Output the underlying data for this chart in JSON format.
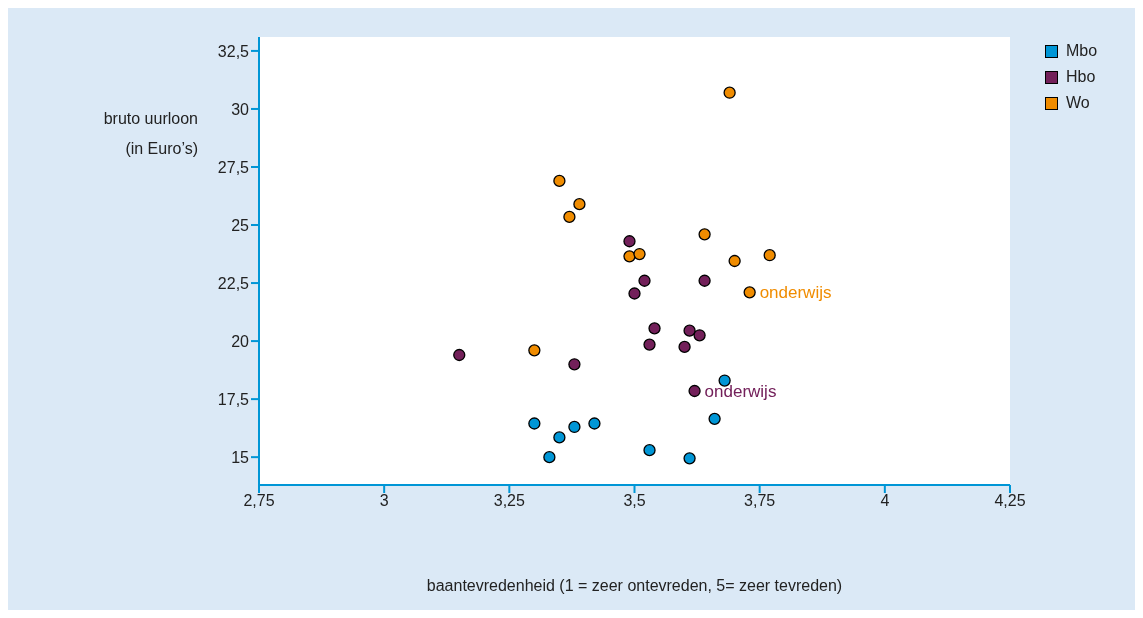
{
  "chart_data": {
    "type": "scatter",
    "xlabel": "baantevredenheid (1 = zeer ontevreden, 5= zeer tevreden)",
    "ylabel": "bruto uurloon\n(in Euro’s)",
    "xlim": [
      2.75,
      4.25
    ],
    "ylim": [
      13.8,
      33.1
    ],
    "xticks": [
      {
        "value": 2.75,
        "label": "2,75"
      },
      3,
      {
        "value": 3.25,
        "label": "3,25"
      },
      {
        "value": 3.5,
        "label": "3,5"
      },
      {
        "value": 3.75,
        "label": "3,75"
      },
      4,
      {
        "value": 4.25,
        "label": "4,25"
      }
    ],
    "yticks": [
      15,
      {
        "value": 17.5,
        "label": "17,5"
      },
      20,
      {
        "value": 22.5,
        "label": "22,5"
      },
      25,
      {
        "value": 27.5,
        "label": "27,5"
      },
      30,
      {
        "value": 32.5,
        "label": "32,5"
      }
    ],
    "grid": false,
    "legend": "top right",
    "marker": "circle",
    "series": [
      {
        "name": "Mbo",
        "color": "#0096d6",
        "x": [
          3.3,
          3.35,
          3.33,
          3.38,
          3.42,
          3.53,
          3.61,
          3.66,
          3.68
        ],
        "values": [
          16.45,
          15.85,
          15.0,
          16.3,
          16.45,
          15.3,
          14.95,
          16.65,
          18.3
        ]
      },
      {
        "name": "Hbo",
        "color": "#73205a",
        "x": [
          3.15,
          3.38,
          3.49,
          3.52,
          3.5,
          3.54,
          3.53,
          3.6,
          3.61,
          3.63,
          3.64,
          3.62
        ],
        "values": [
          19.4,
          19.0,
          24.3,
          22.6,
          22.05,
          20.55,
          19.85,
          19.75,
          20.45,
          20.25,
          22.6,
          17.85
        ]
      },
      {
        "name": "Wo",
        "color": "#f08c00",
        "x": [
          3.35,
          3.39,
          3.37,
          3.3,
          3.49,
          3.51,
          3.64,
          3.7,
          3.77,
          3.73,
          3.69
        ],
        "values": [
          26.9,
          25.9,
          25.35,
          19.6,
          23.65,
          23.75,
          24.6,
          23.45,
          23.7,
          22.1,
          30.7
        ]
      }
    ],
    "annotations": [
      {
        "text": "onderwijs",
        "x": 3.73,
        "y": 22.1
      },
      {
        "text": "onderwijs",
        "x": 3.62,
        "y": 17.85
      }
    ]
  }
}
